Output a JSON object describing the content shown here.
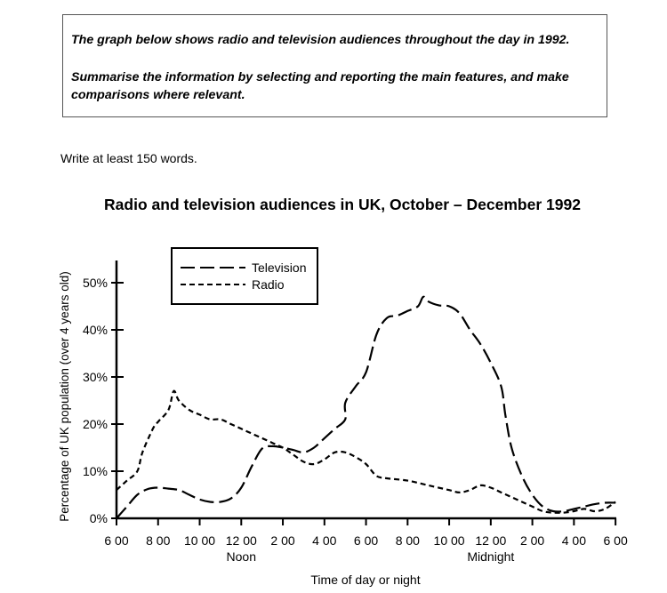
{
  "task": {
    "line1": "The graph below shows radio and television audiences throughout the day in 1992.",
    "line2": "Summarise the information by selecting and reporting the main features, and make comparisons where relevant."
  },
  "instruction": "Write at least 150 words.",
  "chart_data": {
    "type": "line",
    "title": "Radio and television audiences in UK, October – December 1992",
    "xlabel": "Time of day or night",
    "ylabel": "Percentage of UK population (over 4 years old)",
    "ylim": [
      0,
      50
    ],
    "yticks": [
      "0%",
      "10%",
      "20%",
      "30%",
      "40%",
      "50%"
    ],
    "xtick_labels": [
      "6 00",
      "8 00",
      "10 00",
      "12 00",
      "2 00",
      "4 00",
      "6 00",
      "8 00",
      "10 00",
      "12 00",
      "2 00",
      "4 00",
      "6 00"
    ],
    "x_sublabels": [
      {
        "tick": 3,
        "text": "Noon"
      },
      {
        "tick": 9,
        "text": "Midnight"
      }
    ],
    "legend_position": "top-left",
    "grid": false,
    "series": [
      {
        "name": "Television",
        "style": "long-dash",
        "points": [
          [
            0,
            0
          ],
          [
            0.5,
            2.5
          ],
          [
            1,
            5
          ],
          [
            1.5,
            6.2
          ],
          [
            2,
            6.5
          ],
          [
            2.5,
            6.3
          ],
          [
            3,
            6
          ],
          [
            3.5,
            5
          ],
          [
            4,
            4
          ],
          [
            4.5,
            3.5
          ],
          [
            5,
            3.5
          ],
          [
            5.5,
            4.2
          ],
          [
            6,
            6.5
          ],
          [
            6.5,
            11
          ],
          [
            7,
            14.8
          ],
          [
            7.5,
            15.3
          ],
          [
            8,
            15
          ],
          [
            8.5,
            14.5
          ],
          [
            9,
            14
          ],
          [
            9.5,
            15
          ],
          [
            10,
            17
          ],
          [
            10.5,
            19
          ],
          [
            11,
            21
          ],
          [
            11,
            24.5
          ],
          [
            11.5,
            28
          ],
          [
            12,
            31
          ],
          [
            12.5,
            39
          ],
          [
            13,
            42.5
          ],
          [
            13.5,
            43
          ],
          [
            14,
            44
          ],
          [
            14.5,
            45
          ],
          [
            14.75,
            47
          ],
          [
            15,
            46
          ],
          [
            15.5,
            45.2
          ],
          [
            16,
            45
          ],
          [
            16.5,
            43.5
          ],
          [
            17,
            40
          ],
          [
            17.5,
            37
          ],
          [
            18,
            33
          ],
          [
            18.5,
            28
          ],
          [
            18.7,
            22
          ],
          [
            19,
            15
          ],
          [
            19.5,
            9
          ],
          [
            20,
            5
          ],
          [
            20.5,
            2.5
          ],
          [
            21,
            1.5
          ],
          [
            21.5,
            1.5
          ],
          [
            22,
            2
          ],
          [
            22.5,
            2.5
          ],
          [
            23,
            3
          ],
          [
            23.5,
            3.3
          ],
          [
            24,
            3.3
          ]
        ]
      },
      {
        "name": "Radio",
        "style": "short-dash",
        "points": [
          [
            0,
            6
          ],
          [
            0.5,
            8
          ],
          [
            1,
            10
          ],
          [
            1.25,
            14
          ],
          [
            1.75,
            19
          ],
          [
            2,
            20.5
          ],
          [
            2.5,
            23
          ],
          [
            2.75,
            27
          ],
          [
            3,
            25
          ],
          [
            3.5,
            23
          ],
          [
            4,
            22
          ],
          [
            4.5,
            21
          ],
          [
            5,
            21
          ],
          [
            5.5,
            20
          ],
          [
            6,
            19
          ],
          [
            6.5,
            18
          ],
          [
            7,
            17
          ],
          [
            7.5,
            16
          ],
          [
            8,
            15
          ],
          [
            8.5,
            13.5
          ],
          [
            9,
            12
          ],
          [
            9.5,
            11.5
          ],
          [
            10,
            12.5
          ],
          [
            10.5,
            14
          ],
          [
            11,
            14
          ],
          [
            11.5,
            13
          ],
          [
            12,
            11.5
          ],
          [
            12.5,
            9
          ],
          [
            13,
            8.5
          ],
          [
            14,
            8
          ],
          [
            15,
            7
          ],
          [
            16,
            6
          ],
          [
            16.5,
            5.5
          ],
          [
            17,
            6
          ],
          [
            17.5,
            7
          ],
          [
            18,
            6.5
          ],
          [
            18.5,
            5.5
          ],
          [
            19,
            4.5
          ],
          [
            19.5,
            3.5
          ],
          [
            20,
            2.5
          ],
          [
            20.5,
            1.5
          ],
          [
            21,
            1.2
          ],
          [
            21.5,
            1.2
          ],
          [
            22,
            1.5
          ],
          [
            22.5,
            2
          ],
          [
            23,
            1.5
          ],
          [
            23.5,
            2
          ],
          [
            24,
            3.5
          ]
        ]
      }
    ]
  }
}
